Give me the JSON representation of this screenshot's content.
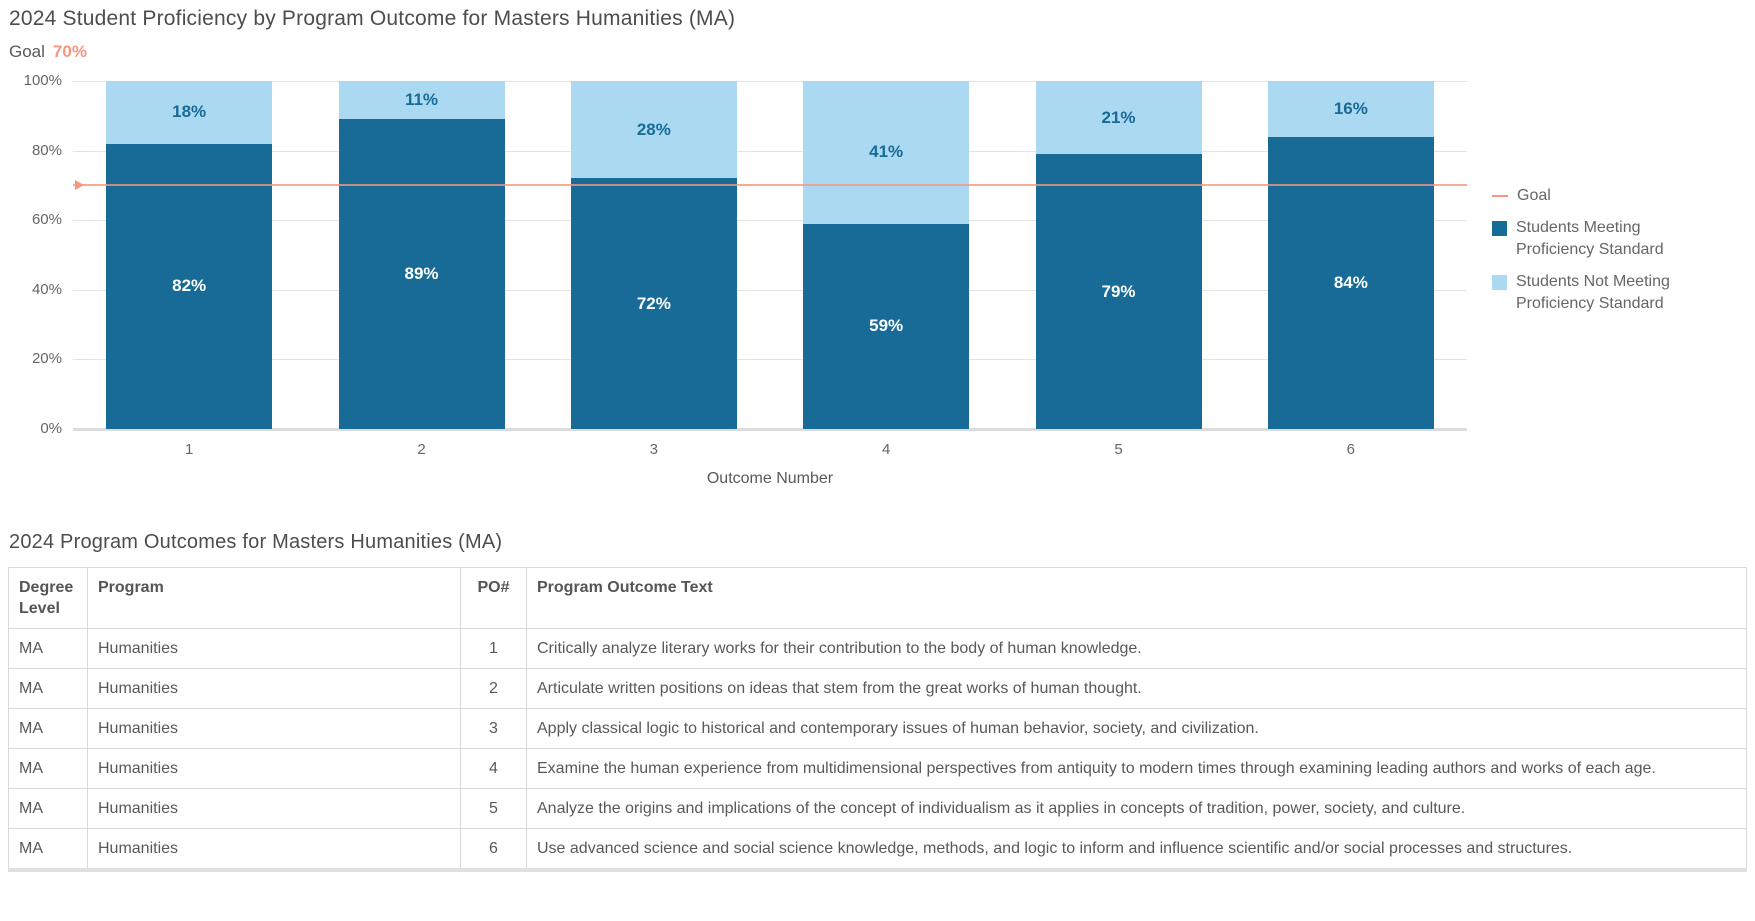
{
  "chart": {
    "title": "2024 Student Proficiency by Program Outcome for Masters Humanities (MA)",
    "goal_label": "Goal",
    "goal_value": "70%"
  },
  "chart_data": {
    "type": "bar",
    "stacked": true,
    "title": "2024 Student Proficiency by Program Outcome for Masters Humanities (MA)",
    "categories": [
      "1",
      "2",
      "3",
      "4",
      "5",
      "6"
    ],
    "series": [
      {
        "name": "Students Meeting Proficiency Standard",
        "values": [
          82,
          89,
          72,
          59,
          79,
          84
        ],
        "color": "#176b96",
        "label_color": "#ffffff"
      },
      {
        "name": "Students Not Meeting Proficiency Standard",
        "values": [
          18,
          11,
          28,
          41,
          21,
          16
        ],
        "color": "#acd9f2",
        "label_color": "#176b96"
      }
    ],
    "goal": {
      "label": "Goal",
      "value": 70,
      "display": "70%",
      "color": "#f3977e"
    },
    "xlabel": "Outcome Number",
    "ylabel": "",
    "ylim": [
      0,
      100
    ],
    "yticks": [
      0,
      20,
      40,
      60,
      80,
      100
    ],
    "ytick_labels": [
      "0%",
      "20%",
      "40%",
      "60%",
      "80%",
      "100%"
    ],
    "data_label_format": "percent",
    "grid": true,
    "legend_position": "right",
    "legend": [
      "Goal",
      "Students Meeting Proficiency Standard",
      "Students Not Meeting Proficiency Standard"
    ]
  },
  "table": {
    "title": "2024 Program Outcomes for Masters Humanities (MA)",
    "headers": [
      "Degree Level",
      "Program",
      "PO#",
      "Program Outcome Text"
    ],
    "rows": [
      {
        "degree_level": "MA",
        "program": "Humanities",
        "po": "1",
        "text": "Critically analyze literary works for their contribution to the body of human knowledge."
      },
      {
        "degree_level": "MA",
        "program": "Humanities",
        "po": "2",
        "text": "Articulate written positions on ideas that stem from the great works of human thought."
      },
      {
        "degree_level": "MA",
        "program": "Humanities",
        "po": "3",
        "text": "Apply classical logic to historical and contemporary issues of human behavior, society, and civilization."
      },
      {
        "degree_level": "MA",
        "program": "Humanities",
        "po": "4",
        "text": "Examine the human experience from multidimensional perspectives from antiquity to modern times through examining leading authors and works of each age."
      },
      {
        "degree_level": "MA",
        "program": "Humanities",
        "po": "5",
        "text": "Analyze the origins and implications of the concept of individualism as it applies in concepts of tradition, power, society, and culture."
      },
      {
        "degree_level": "MA",
        "program": "Humanities",
        "po": "6",
        "text": "Use advanced science and social science knowledge, methods, and logic to inform and influence scientific and/or social processes and structures."
      }
    ]
  },
  "colors": {
    "meeting": "#176b96",
    "not_meeting": "#acd9f2",
    "goal": "#f3977e",
    "title_text": "#4d4d4d",
    "body_text": "#595959",
    "axis_text": "#666666",
    "gridline": "#e4e4e4",
    "table_border": "#d9d9d9"
  }
}
